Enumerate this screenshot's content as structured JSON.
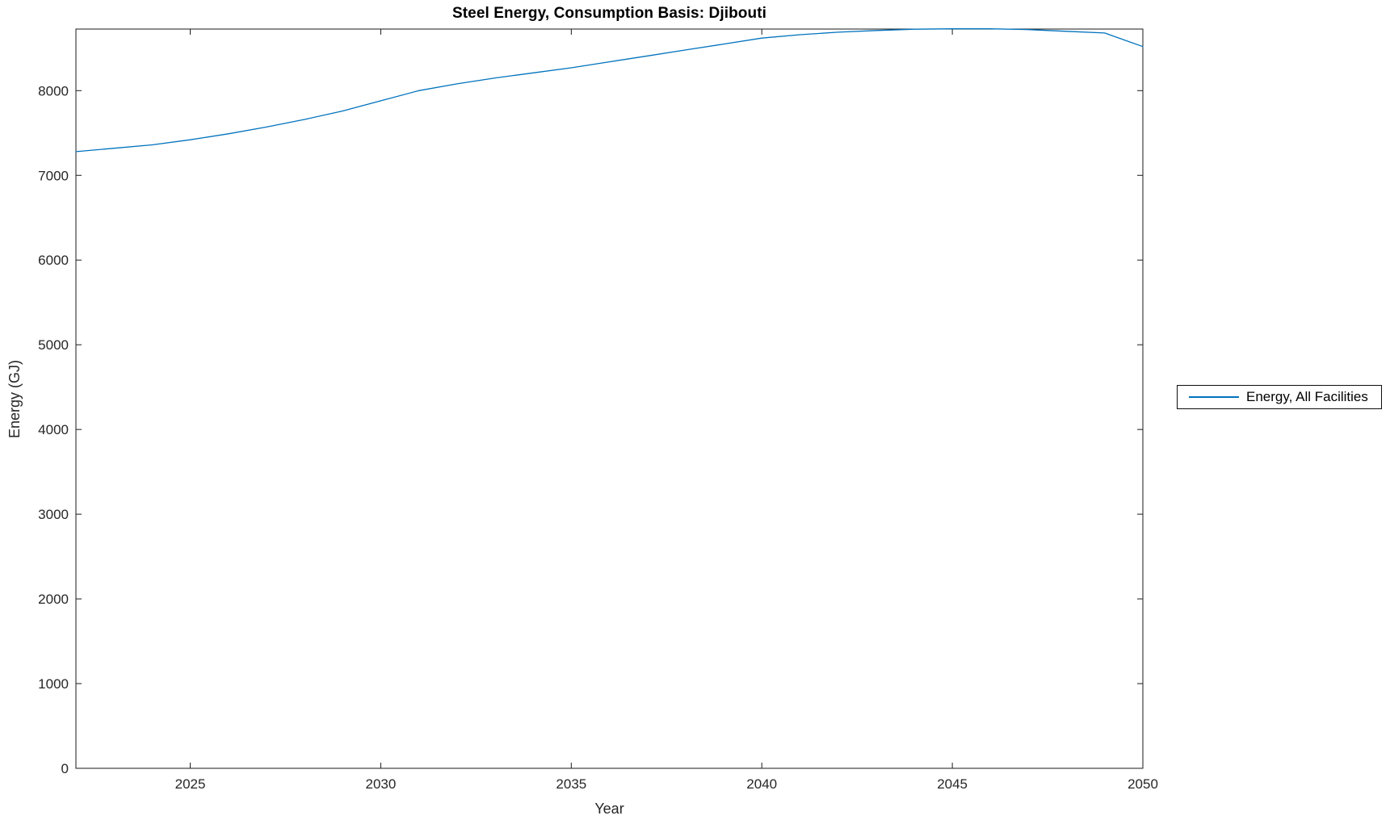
{
  "chart_data": {
    "type": "line",
    "title": "Steel Energy, Consumption Basis: Djibouti",
    "xlabel": "Year",
    "ylabel": "Energy (GJ)",
    "xlim": [
      2022,
      2050
    ],
    "ylim": [
      0,
      8727
    ],
    "xticks": [
      2025,
      2030,
      2035,
      2040,
      2045,
      2050
    ],
    "yticks": [
      0,
      1000,
      2000,
      3000,
      4000,
      5000,
      6000,
      7000,
      8000
    ],
    "grid": false,
    "box": true,
    "legend_position": "right-outside",
    "x": [
      2022,
      2023,
      2024,
      2025,
      2026,
      2027,
      2028,
      2029,
      2030,
      2031,
      2032,
      2033,
      2034,
      2035,
      2036,
      2037,
      2038,
      2039,
      2040,
      2041,
      2042,
      2043,
      2044,
      2045,
      2046,
      2047,
      2048,
      2049,
      2050
    ],
    "series": [
      {
        "name": "Energy, All Facilities",
        "color": "#0072BD",
        "values": [
          7280,
          7320,
          7360,
          7420,
          7490,
          7570,
          7660,
          7760,
          7880,
          8000,
          8080,
          8150,
          8210,
          8270,
          8340,
          8410,
          8480,
          8550,
          8620,
          8660,
          8690,
          8710,
          8725,
          8730,
          8730,
          8720,
          8700,
          8680,
          8520
        ]
      }
    ]
  },
  "style": {
    "axis_color": "#1a1a1a",
    "tick_label_color": "#262626",
    "background": "#ffffff",
    "tick_length": 7
  }
}
